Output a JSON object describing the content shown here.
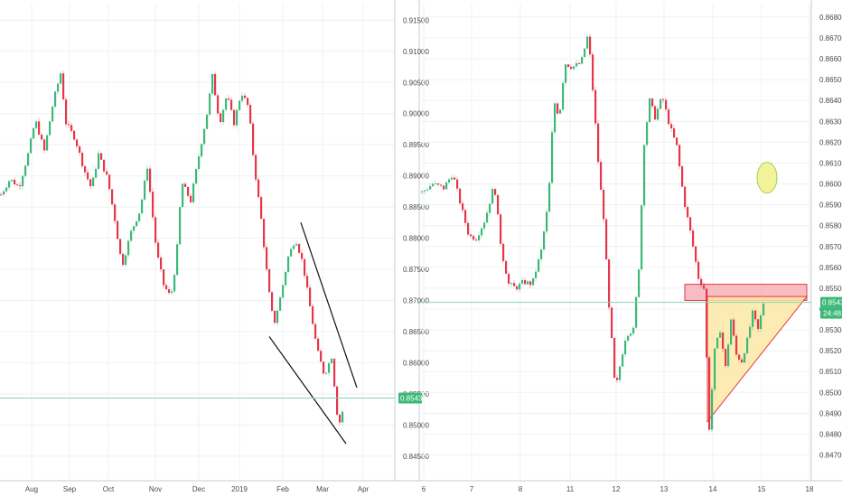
{
  "colors": {
    "up": "#3cb878",
    "down": "#e5374a",
    "grid": "#eef0f3",
    "axis": "#c8cbd0",
    "price_line": "#8ad3b5",
    "price_bg": "#3cb878"
  },
  "chart_data": [
    {
      "type": "candlestick",
      "timeframe": "daily",
      "ylim": [
        0.8425,
        0.9165
      ],
      "y_ticks": [
        "0.91500",
        "0.91000",
        "0.90500",
        "0.90000",
        "0.89500",
        "0.89000",
        "0.88500",
        "0.88000",
        "0.87500",
        "0.87000",
        "0.86500",
        "0.86000",
        "0.85500",
        "0.85000",
        "0.84500"
      ],
      "x_ticks": [
        "Aug",
        "Sep",
        "Oct",
        "Nov",
        "Dec",
        "2019",
        "Feb",
        "Mar",
        "Apr"
      ],
      "current_price": "0.85432",
      "close_path": [
        [
          0,
          0.887
        ],
        [
          10,
          0.8895
        ],
        [
          20,
          0.8882
        ],
        [
          30,
          0.8935
        ],
        [
          38,
          0.899
        ],
        [
          48,
          0.894
        ],
        [
          58,
          0.902
        ],
        [
          66,
          0.9065
        ],
        [
          72,
          0.8985
        ],
        [
          82,
          0.896
        ],
        [
          92,
          0.891
        ],
        [
          100,
          0.888
        ],
        [
          108,
          0.8935
        ],
        [
          118,
          0.8895
        ],
        [
          126,
          0.883
        ],
        [
          134,
          0.8755
        ],
        [
          144,
          0.881
        ],
        [
          154,
          0.8845
        ],
        [
          162,
          0.8915
        ],
        [
          172,
          0.878
        ],
        [
          180,
          0.8725
        ],
        [
          188,
          0.8705
        ],
        [
          194,
          0.8765
        ],
        [
          200,
          0.889
        ],
        [
          210,
          0.886
        ],
        [
          220,
          0.894
        ],
        [
          228,
          0.9
        ],
        [
          234,
          0.906
        ],
        [
          242,
          0.8985
        ],
        [
          250,
          0.903
        ],
        [
          258,
          0.8985
        ],
        [
          266,
          0.9035
        ],
        [
          274,
          0.901
        ],
        [
          280,
          0.892
        ],
        [
          288,
          0.883
        ],
        [
          296,
          0.872
        ],
        [
          302,
          0.866
        ],
        [
          310,
          0.871
        ],
        [
          318,
          0.877
        ],
        [
          326,
          0.88
        ],
        [
          334,
          0.876
        ],
        [
          342,
          0.869
        ],
        [
          350,
          0.862
        ],
        [
          358,
          0.858
        ],
        [
          366,
          0.861
        ],
        [
          372,
          0.852
        ],
        [
          376,
          0.85
        ],
        [
          380,
          0.8543
        ]
      ],
      "trendlines": [
        {
          "p1": [
            333,
            0.8825
          ],
          "p2": [
            395,
            0.856
          ]
        },
        {
          "p1": [
            298,
            0.8642
          ],
          "p2": [
            383,
            0.847
          ]
        }
      ]
    },
    {
      "type": "candlestick",
      "timeframe": "hourly",
      "ylim": [
        0.8462,
        0.8683
      ],
      "y_ticks": [
        "0.86800",
        "0.86700",
        "0.86600",
        "0.86500",
        "0.86400",
        "0.86300",
        "0.86200",
        "0.86100",
        "0.86000",
        "0.85900",
        "0.85800",
        "0.85700",
        "0.85600",
        "0.85500",
        "0.85400",
        "0.85300",
        "0.85200",
        "0.85100",
        "0.85000",
        "0.84900",
        "0.84800",
        "0.84700"
      ],
      "x_ticks": [
        "6",
        "7",
        "8",
        "11",
        "12",
        "13",
        "14",
        "15",
        "18"
      ],
      "current_price": "0.85432",
      "countdown": "24:48",
      "close_path": [
        [
          0,
          0.8596
        ],
        [
          12,
          0.86
        ],
        [
          24,
          0.8598
        ],
        [
          34,
          0.8605
        ],
        [
          44,
          0.8588
        ],
        [
          52,
          0.8575
        ],
        [
          60,
          0.8574
        ],
        [
          70,
          0.8583
        ],
        [
          80,
          0.86
        ],
        [
          88,
          0.8568
        ],
        [
          96,
          0.8552
        ],
        [
          104,
          0.855
        ],
        [
          112,
          0.8553
        ],
        [
          122,
          0.8552
        ],
        [
          132,
          0.8568
        ],
        [
          140,
          0.8592
        ],
        [
          146,
          0.864
        ],
        [
          152,
          0.8632
        ],
        [
          158,
          0.8658
        ],
        [
          166,
          0.8656
        ],
        [
          176,
          0.8658
        ],
        [
          184,
          0.8672
        ],
        [
          190,
          0.864
        ],
        [
          196,
          0.8605
        ],
        [
          202,
          0.858
        ],
        [
          206,
          0.8545
        ],
        [
          210,
          0.8525
        ],
        [
          214,
          0.85
        ],
        [
          220,
          0.8515
        ],
        [
          226,
          0.8528
        ],
        [
          234,
          0.853
        ],
        [
          240,
          0.856
        ],
        [
          246,
          0.862
        ],
        [
          252,
          0.864
        ],
        [
          258,
          0.8632
        ],
        [
          266,
          0.8642
        ],
        [
          274,
          0.8628
        ],
        [
          282,
          0.8618
        ],
        [
          290,
          0.8592
        ],
        [
          298,
          0.8575
        ],
        [
          306,
          0.8555
        ],
        [
          312,
          0.855
        ],
        [
          318,
          0.8483
        ],
        [
          324,
          0.852
        ],
        [
          330,
          0.853
        ],
        [
          336,
          0.8512
        ],
        [
          342,
          0.8535
        ],
        [
          348,
          0.8518
        ],
        [
          354,
          0.8515
        ],
        [
          360,
          0.8525
        ],
        [
          366,
          0.8538
        ],
        [
          372,
          0.853
        ],
        [
          378,
          0.8543
        ]
      ],
      "zones": [
        {
          "shape": "rect",
          "from": [
            758,
            0.8551
          ],
          "to": [
            893,
            0.8549
          ],
          "y2": 0.8545,
          "fill": "#f4a7ae",
          "stroke": "#e5374a"
        },
        {
          "shape": "triangle",
          "points": [
            [
              783,
              0.8546
            ],
            [
              893,
              0.8546
            ],
            [
              783,
              0.8486
            ]
          ],
          "fill": "#fbe7a6",
          "stroke": "#e5374a"
        }
      ],
      "ellipse": {
        "cx": 849,
        "cy": 0.8603,
        "fill": "#f3f39a",
        "stroke": "#9ccf57"
      }
    }
  ]
}
